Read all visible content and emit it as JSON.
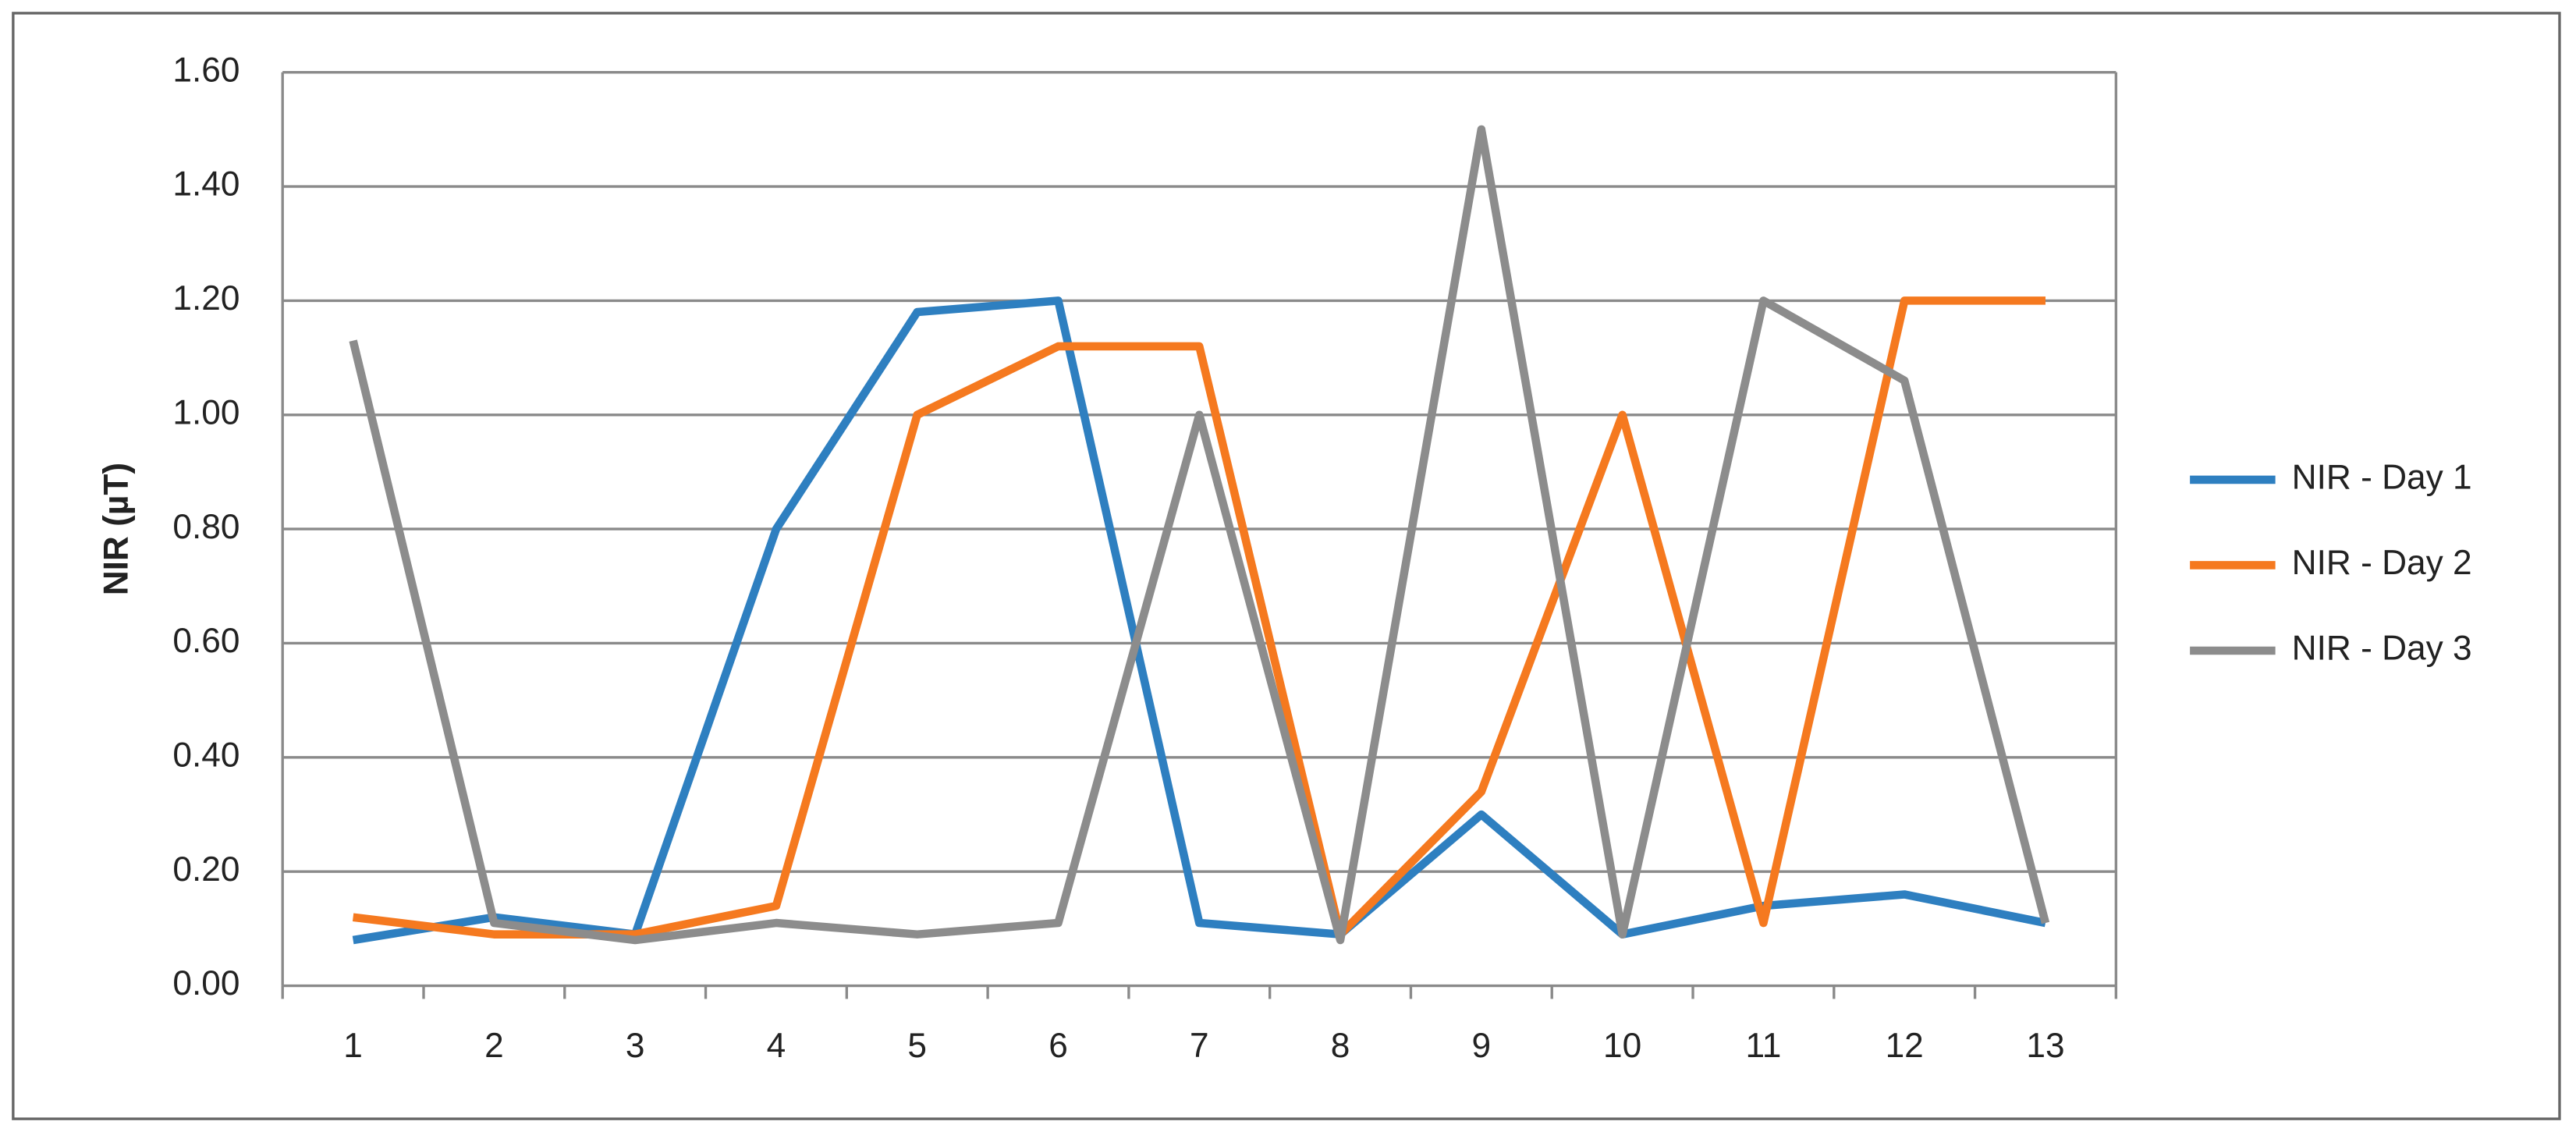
{
  "chart_data": {
    "type": "line",
    "y_label": "NIR (µT)",
    "categories": [
      1,
      2,
      3,
      4,
      5,
      6,
      7,
      8,
      9,
      10,
      11,
      12,
      13
    ],
    "series": [
      {
        "name": "NIR - Day 1",
        "color": "#2e7fc0",
        "values": [
          0.08,
          0.12,
          0.09,
          0.8,
          1.18,
          1.2,
          0.11,
          0.09,
          0.3,
          0.09,
          0.14,
          0.16,
          0.11
        ]
      },
      {
        "name": "NIR - Day 2",
        "color": "#f5791f",
        "values": [
          0.12,
          0.09,
          0.09,
          0.14,
          1.0,
          1.12,
          1.12,
          0.09,
          0.34,
          1.0,
          0.11,
          1.2,
          1.2
        ]
      },
      {
        "name": "NIR - Day 3",
        "color": "#8c8c8c",
        "values": [
          1.13,
          0.11,
          0.08,
          0.11,
          0.09,
          0.11,
          1.0,
          0.08,
          1.5,
          0.09,
          1.2,
          1.06,
          0.11
        ]
      }
    ],
    "ylim": [
      0,
      1.6
    ],
    "yticks": [
      {
        "value": 0,
        "label": "0.00"
      },
      {
        "value": 0.2,
        "label": "0.20"
      },
      {
        "value": 0.4,
        "label": "0.40"
      },
      {
        "value": 0.6,
        "label": "0.60"
      },
      {
        "value": 0.8,
        "label": "0.80"
      },
      {
        "value": 1,
        "label": "1.00"
      },
      {
        "value": 1.2,
        "label": "1.20"
      },
      {
        "value": 1.4,
        "label": "1.40"
      },
      {
        "value": 1.6,
        "label": "1.60"
      }
    ],
    "grid": true,
    "legend": "right"
  }
}
